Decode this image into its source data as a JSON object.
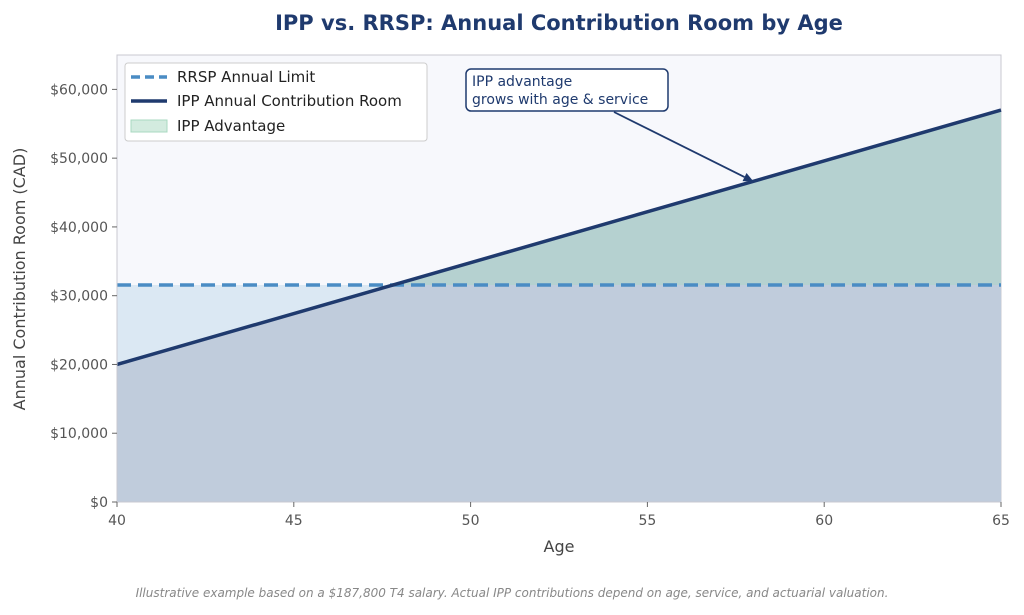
{
  "chart_data": {
    "type": "line",
    "title": "IPP vs. RRSP: Annual Contribution Room by Age",
    "xlabel": "Age",
    "ylabel": "Annual Contribution Room (CAD)",
    "xlim": [
      40,
      65
    ],
    "ylim": [
      0,
      65000
    ],
    "x_ticks": [
      "40",
      "45",
      "50",
      "55",
      "60",
      "65"
    ],
    "y_ticks": [
      "$0",
      "$10,000",
      "$20,000",
      "$30,000",
      "$40,000",
      "$50,000",
      "$60,000"
    ],
    "x": [
      40,
      65
    ],
    "series": [
      {
        "name": "RRSP Annual Limit",
        "style": "dashed",
        "color": "#4a8cc4",
        "values": [
          31560,
          31560
        ]
      },
      {
        "name": "IPP Annual Contribution Room",
        "style": "solid",
        "color": "#1f3a6e",
        "values": [
          20000,
          57000
        ]
      }
    ],
    "fill_label": "IPP Advantage",
    "fill_color": "#a8d8c0",
    "legend_position": "top-left",
    "annotation": {
      "lines": [
        "IPP advantage",
        "grows with age & service"
      ],
      "points_to": {
        "x": 58,
        "y": 46600
      }
    },
    "colors": {
      "title": "#1f3a6e",
      "plot_bg": "#f7f8fc",
      "below_rrsp_fill": "#dbe8f3",
      "below_ipp_fill": "#c0ccdc"
    }
  },
  "footnote": "Illustrative example based on a $187,800 T4 salary. Actual IPP contributions depend on age, service, and actuarial valuation."
}
